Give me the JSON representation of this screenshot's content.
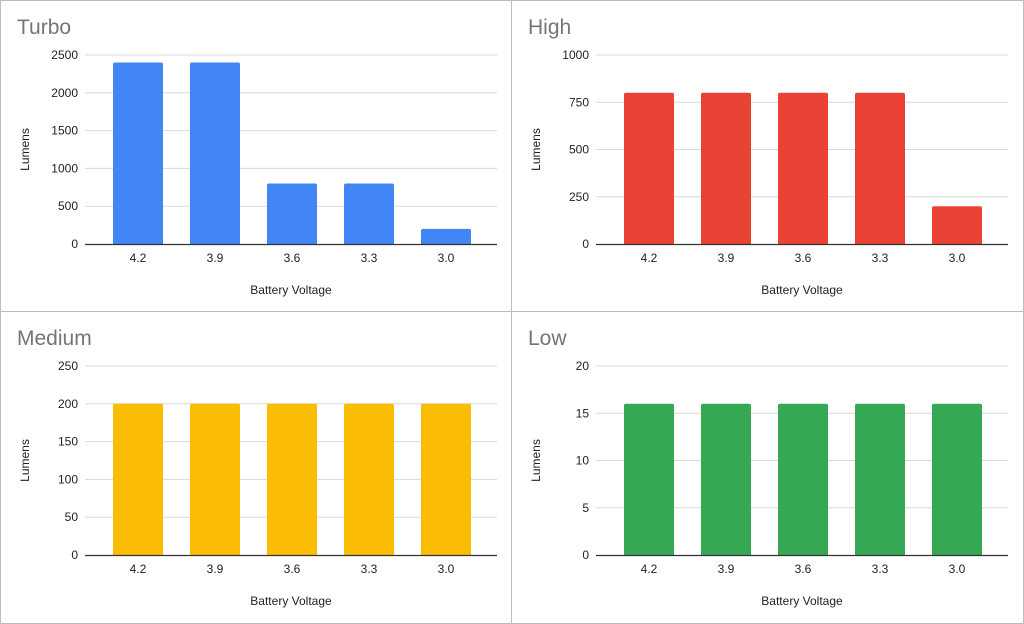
{
  "chart_data": [
    {
      "type": "bar",
      "title": "Turbo",
      "xlabel": "Battery Voltage",
      "ylabel": "Lumens",
      "categories": [
        "4.2",
        "3.9",
        "3.6",
        "3.3",
        "3.0"
      ],
      "values": [
        2400,
        2400,
        800,
        800,
        200
      ],
      "ylim": [
        0,
        2500
      ],
      "yticks": [
        0,
        500,
        1000,
        1500,
        2000,
        2500
      ],
      "color": "#4285f4",
      "grid": true
    },
    {
      "type": "bar",
      "title": "High",
      "xlabel": "Battery Voltage",
      "ylabel": "Lumens",
      "categories": [
        "4.2",
        "3.9",
        "3.6",
        "3.3",
        "3.0"
      ],
      "values": [
        800,
        800,
        800,
        800,
        200
      ],
      "ylim": [
        0,
        1000
      ],
      "yticks": [
        0,
        250,
        500,
        750,
        1000
      ],
      "color": "#ea4335",
      "grid": true
    },
    {
      "type": "bar",
      "title": "Medium",
      "xlabel": "Battery Voltage",
      "ylabel": "Lumens",
      "categories": [
        "4.2",
        "3.9",
        "3.6",
        "3.3",
        "3.0"
      ],
      "values": [
        200,
        200,
        200,
        200,
        200
      ],
      "ylim": [
        0,
        250
      ],
      "yticks": [
        0,
        50,
        100,
        150,
        200,
        250
      ],
      "color": "#fbbc04",
      "grid": true
    },
    {
      "type": "bar",
      "title": "Low",
      "xlabel": "Battery Voltage",
      "ylabel": "Lumens",
      "categories": [
        "4.2",
        "3.9",
        "3.6",
        "3.3",
        "3.0"
      ],
      "values": [
        16,
        16,
        16,
        16,
        16
      ],
      "ylim": [
        0,
        20
      ],
      "yticks": [
        0,
        5,
        10,
        15,
        20
      ],
      "color": "#34a853",
      "grid": true
    }
  ]
}
